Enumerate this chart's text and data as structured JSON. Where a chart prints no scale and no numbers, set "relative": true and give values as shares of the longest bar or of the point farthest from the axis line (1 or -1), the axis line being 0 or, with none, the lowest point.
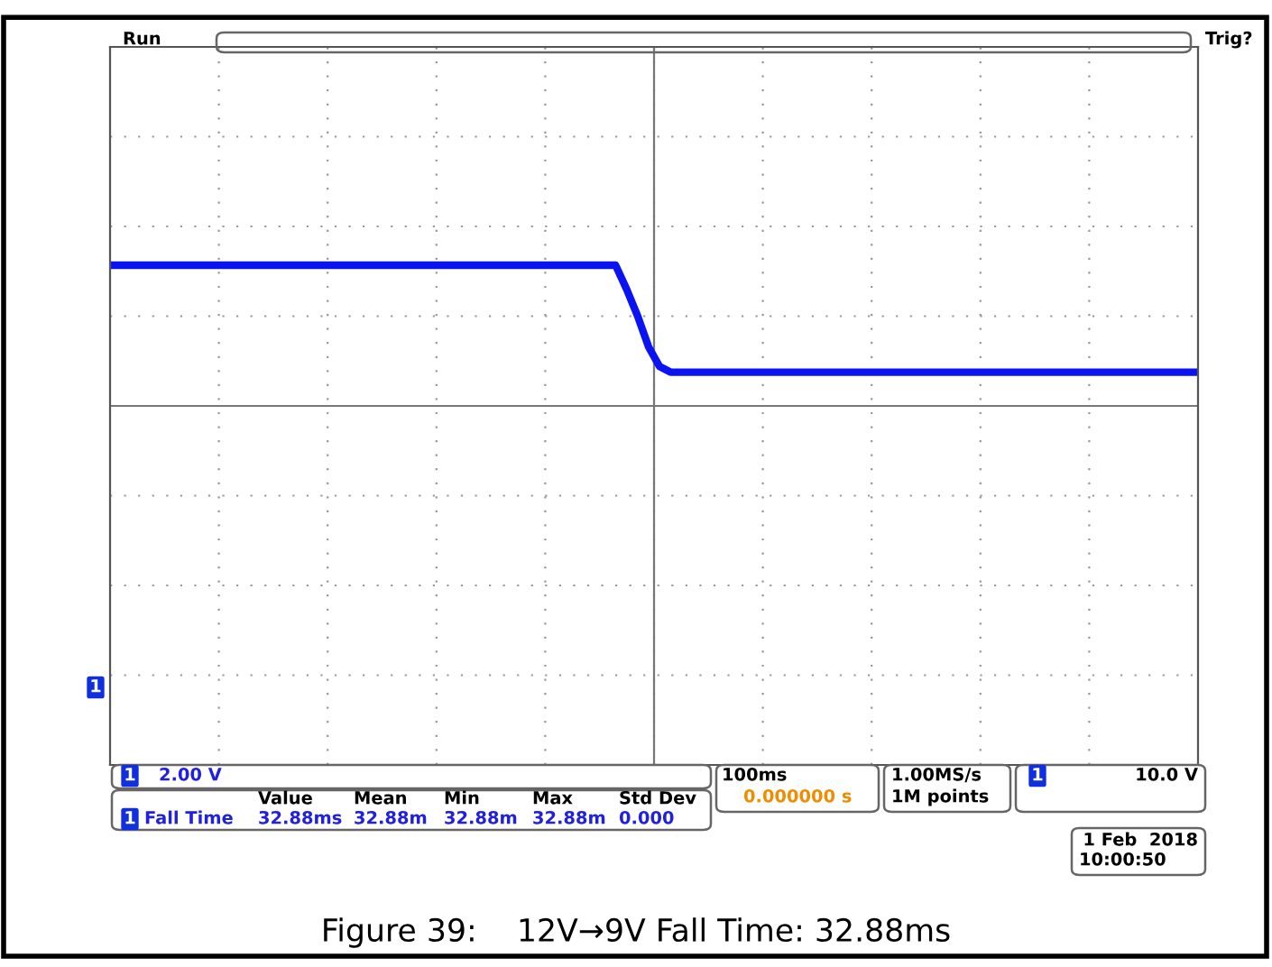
{
  "chart_data": {
    "type": "line",
    "relative": true,
    "grid": true,
    "line_style": "solid",
    "title": "Figure 39:    12V→9V Fall Time: 32.88ms",
    "categories": [
      null,
      null,
      null,
      null,
      null,
      null,
      null,
      null,
      null,
      null,
      null,
      null,
      null,
      null,
      null,
      null,
      null,
      null,
      null,
      null,
      null,
      null,
      null,
      null,
      null,
      null,
      null,
      null,
      null,
      null,
      null,
      null,
      null,
      null,
      null,
      null,
      null,
      null,
      null,
      null,
      null,
      null,
      null,
      null,
      null,
      null,
      null,
      null,
      null,
      null,
      null,
      null,
      null,
      null,
      null,
      null,
      null,
      null,
      null,
      null,
      null,
      null,
      null,
      null,
      null,
      null,
      null,
      null,
      null,
      null,
      null,
      null,
      null,
      null,
      null,
      null,
      null,
      null,
      null,
      null,
      null,
      null,
      null,
      null,
      null,
      null,
      null,
      null,
      null,
      null,
      null,
      null,
      null,
      null,
      null,
      null,
      null,
      null,
      null,
      null
    ],
    "series": [
      {
        "color": "#0a14f0",
        "values": [
          1,
          1,
          1,
          1,
          1,
          1,
          1,
          1,
          1,
          1,
          1,
          1,
          1,
          1,
          1,
          1,
          1,
          1,
          1,
          1,
          1,
          1,
          1,
          1,
          1,
          1,
          1,
          1,
          1,
          1,
          1,
          1,
          1,
          1,
          1,
          1,
          1,
          1,
          1,
          1,
          1,
          1,
          1,
          1,
          1,
          1,
          1,
          0.83,
          0.64,
          0.42,
          0.28,
          0.24,
          0.24,
          0.24,
          0.24,
          0.24,
          0.24,
          0.24,
          0.24,
          0.24,
          0.24,
          0.24,
          0.24,
          0.24,
          0.24,
          0.24,
          0.24,
          0.24,
          0.24,
          0.24,
          0.24,
          0.24,
          0.24,
          0.24,
          0.24,
          0.24,
          0.24,
          0.24,
          0.24,
          0.24,
          0.24,
          0.24,
          0.24,
          0.24,
          0.24,
          0.24,
          0.24,
          0.24,
          0.24,
          0.24,
          0.24,
          0.24,
          0.24,
          0.24,
          0.24,
          0.24,
          0.24,
          0.24,
          0.24,
          0.24
        ]
      }
    ],
    "annotations": [
      "Run",
      "Trig?",
      "1",
      "1",
      "1",
      "1",
      "2.00 V",
      "Value",
      "Mean",
      "Min",
      "Max",
      "Std Dev",
      "Fall Time",
      "32.88ms",
      "32.88m",
      "32.88m",
      "32.88m",
      "0.000",
      "100ms",
      "0.000000 s",
      "1.00MS/s",
      "1M points",
      "10.0 V",
      "1 Feb  2018",
      "10:00:50"
    ]
  }
}
